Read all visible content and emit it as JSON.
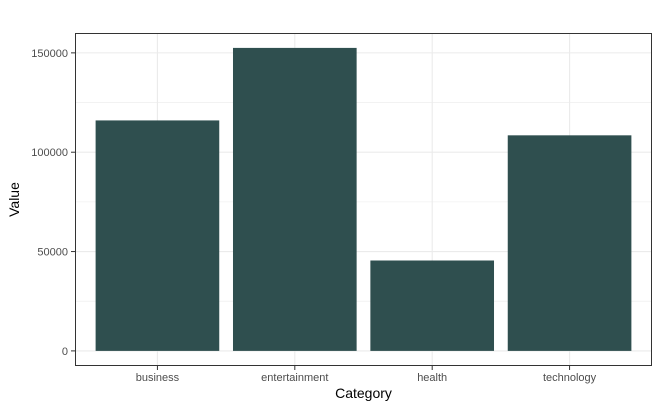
{
  "chart_data": {
    "type": "bar",
    "categories": [
      "business",
      "entertainment",
      "health",
      "technology"
    ],
    "values": [
      116000,
      152500,
      45500,
      108500
    ],
    "xlabel": "Category",
    "ylabel": "Value",
    "ylim": [
      -7600,
      160000
    ],
    "yticks": [
      0,
      50000,
      100000,
      150000
    ],
    "ytick_labels": [
      "0",
      "50000",
      "100000",
      "150000"
    ],
    "grid": true,
    "bar_color": "#2f4f4f",
    "panel_border_color": "#333333",
    "grid_color": "#ebebeb"
  }
}
